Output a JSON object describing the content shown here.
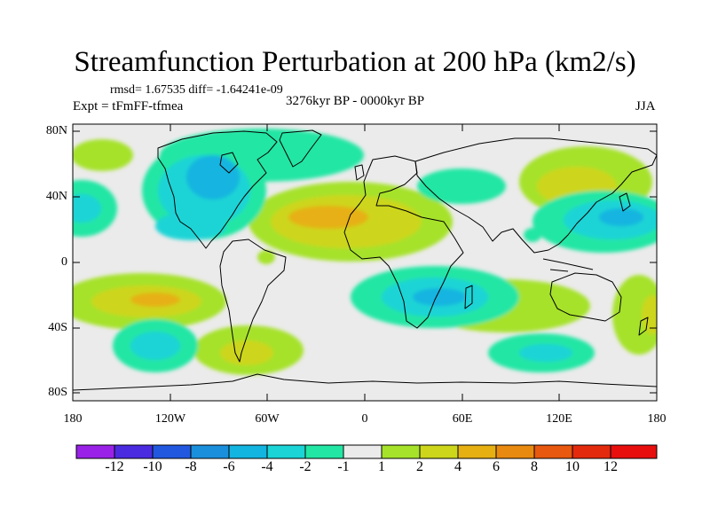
{
  "title": "Streamfunction Perturbation at 200 hPa (km2/s)",
  "stats_line": "rmsd= 1.67535  diff= -1.64241e-09",
  "period": "3276kyr BP - 0000kyr BP",
  "experiment": "Expt = tFmFF-tfmea",
  "season": "JJA",
  "axes": {
    "lat_labels": [
      "80N",
      "40N",
      "0",
      "40S",
      "80S"
    ],
    "lon_labels": [
      "180",
      "120W",
      "60W",
      "0",
      "60E",
      "120E",
      "180"
    ]
  },
  "colorbar": {
    "labels": [
      "-12",
      "-10",
      "-8",
      "-6",
      "-4",
      "-2",
      "-1",
      "1",
      "2",
      "4",
      "6",
      "8",
      "10",
      "12"
    ],
    "colors": [
      "#9a22e8",
      "#4a2be0",
      "#2258e0",
      "#1a8fdc",
      "#12b4e0",
      "#1ad4d6",
      "#22e6a4",
      "#ebebeb",
      "#a6e22a",
      "#cdd61a",
      "#e6b012",
      "#e88a10",
      "#e8580e",
      "#e42a0c",
      "#e80e0e"
    ]
  },
  "map_colors": {
    "background": "#ebebeb",
    "cyan_light": "#22e6a4",
    "cyan": "#1ad4d6",
    "blue": "#12b4e0",
    "blue_dark": "#1a8fdc",
    "green": "#a6e22a",
    "yellow": "#cdd61a",
    "orange": "#e6b012"
  }
}
